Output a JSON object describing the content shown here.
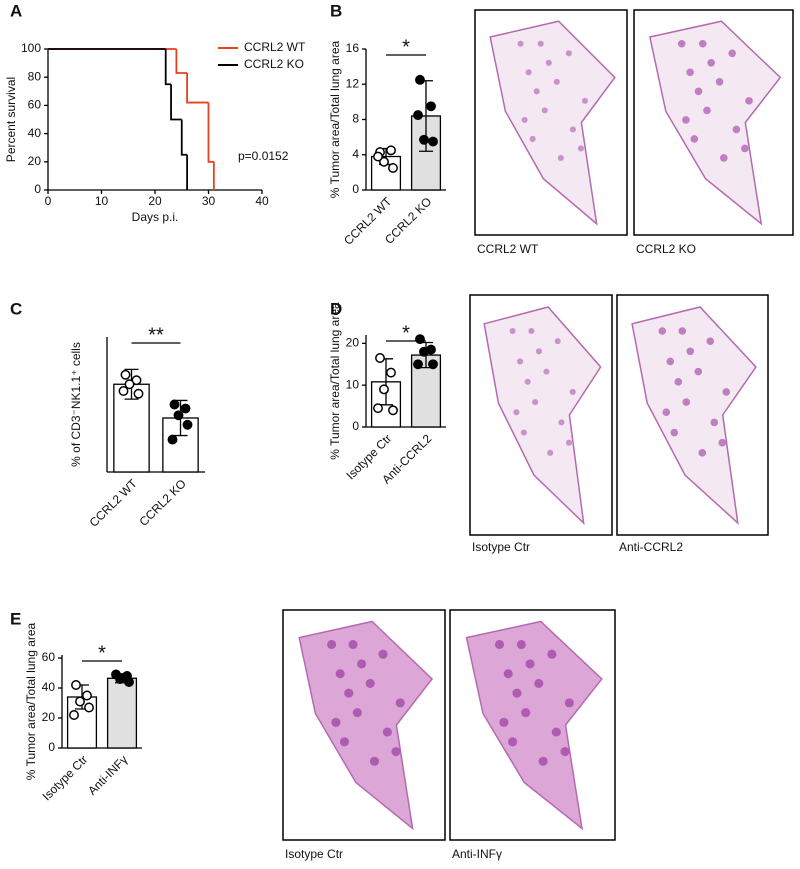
{
  "chart_data": [
    {
      "type": "step",
      "label": "A",
      "xlabel": "Days p.i.",
      "ylabel": "Percent survival",
      "xlim": [
        0,
        40
      ],
      "xticks": [
        0,
        10,
        20,
        30,
        40
      ],
      "ylim": [
        0,
        100
      ],
      "yticks": [
        0,
        20,
        40,
        60,
        80,
        100
      ],
      "annotation": "p=0.0152",
      "series": [
        {
          "name": "CCRL2 WT",
          "color": "#e8401c",
          "x": [
            0,
            24,
            26,
            30,
            31
          ],
          "values": [
            100,
            83,
            62,
            20,
            0
          ]
        },
        {
          "name": "CCRL2 KO",
          "color": "#000000",
          "x": [
            0,
            22,
            23,
            25,
            26
          ],
          "values": [
            100,
            75,
            50,
            25,
            0
          ]
        }
      ]
    },
    {
      "type": "bar",
      "label": "B",
      "ylabel": "% Tumor area/Total lung area",
      "significance": "*",
      "categories": [
        "CCRL2 WT",
        "CCRL2 KO"
      ],
      "values": [
        3.8,
        8.4
      ],
      "errors": [
        0.9,
        4.0
      ],
      "points": [
        [
          4.3,
          4.5,
          3.2,
          2.5,
          3.8
        ],
        [
          12.5,
          9.5,
          5.7,
          5.5,
          8.5
        ]
      ],
      "colors": [
        "#ffffff",
        "#e0e0e0"
      ],
      "point_colors": [
        "#ffffff",
        "#000000"
      ],
      "ylim": [
        0,
        16
      ],
      "yticks": [
        0,
        4,
        8,
        12,
        16
      ]
    },
    {
      "type": "bar",
      "label": "C",
      "ylabel": "% of CD3⁻NK1.1⁺ cells",
      "significance": "**",
      "categories": [
        "CCRL2 WT",
        "CCRL2 KO"
      ],
      "values": [
        6.5,
        4.0
      ],
      "errors": [
        1.1,
        1.3
      ],
      "points": [
        [
          7.2,
          6.8,
          6.5,
          5.8,
          6.0
        ],
        [
          5.0,
          4.7,
          4.2,
          3.5,
          2.4
        ]
      ],
      "colors": [
        "#ffffff",
        "#ffffff"
      ],
      "point_colors": [
        "#ffffff",
        "#000000"
      ],
      "ylim": [
        0,
        10
      ]
    },
    {
      "type": "bar",
      "label": "D",
      "ylabel": "% Tumor area/Total lung area",
      "significance": "*",
      "categories": [
        "Isotype Ctr",
        "Anti-CCRL2"
      ],
      "values": [
        10.8,
        17.2
      ],
      "errors": [
        5.5,
        3.0
      ],
      "points": [
        [
          16.5,
          13,
          9,
          4,
          4.5
        ],
        [
          21,
          18.5,
          18,
          15,
          15
        ]
      ],
      "colors": [
        "#ffffff",
        "#e0e0e0"
      ],
      "point_colors": [
        "#ffffff",
        "#000000"
      ],
      "ylim": [
        0,
        22
      ],
      "yticks": [
        0,
        10,
        20
      ]
    },
    {
      "type": "bar",
      "label": "E",
      "ylabel": "% Tumor area/Total lung area",
      "significance": "*",
      "categories": [
        "Isotype Ctr",
        "Anti-INFγ"
      ],
      "values": [
        34,
        46.5
      ],
      "errors": [
        8,
        3
      ],
      "points": [
        [
          42,
          35,
          31,
          27,
          22
        ],
        [
          49,
          48,
          46,
          44
        ]
      ],
      "colors": [
        "#ffffff",
        "#e0e0e0"
      ],
      "point_colors": [
        "#ffffff",
        "#000000"
      ],
      "ylim": [
        0,
        62
      ],
      "yticks": [
        0,
        20,
        40,
        60
      ]
    }
  ],
  "micrographs": [
    [
      "CCRL2 WT",
      "CCRL2 KO"
    ],
    [
      "Isotype Ctr",
      "Anti-CCRL2"
    ],
    [
      "Isotype Ctr",
      "Anti-INFγ"
    ]
  ]
}
